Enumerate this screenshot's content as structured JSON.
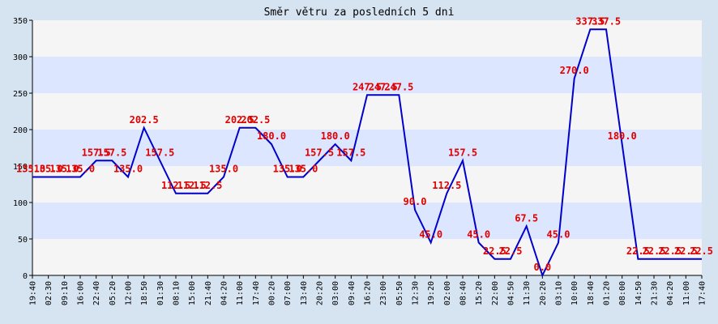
{
  "chart_data": {
    "type": "line",
    "title": "Směr větru za posledních 5 dni",
    "xlabel": "",
    "ylabel": "",
    "ylim": [
      0,
      350
    ],
    "yticks": [
      0,
      50,
      100,
      150,
      200,
      250,
      300,
      350
    ],
    "grid": "horizontal bands",
    "colors": {
      "background": "#d6e4f2",
      "band_light": "#f5f5f5",
      "band_dark": "#dde6ff",
      "line": "#0000cc",
      "labels": "#e00000",
      "axis": "#000000"
    },
    "categories": [
      "19:40",
      "02:30",
      "09:10",
      "16:00",
      "22:40",
      "05:20",
      "12:00",
      "18:50",
      "01:30",
      "08:10",
      "15:00",
      "21:40",
      "04:20",
      "11:00",
      "17:40",
      "00:20",
      "07:00",
      "13:40",
      "20:20",
      "03:00",
      "09:40",
      "16:20",
      "23:00",
      "05:50",
      "12:30",
      "19:20",
      "02:00",
      "08:40",
      "15:20",
      "22:00",
      "04:50",
      "11:30",
      "20:20",
      "03:10",
      "10:00",
      "18:40",
      "01:20",
      "08:00",
      "14:50",
      "21:30",
      "04:20",
      "11:00",
      "17:40"
    ],
    "series": [
      {
        "values": [
          135.0,
          135.0,
          135.0,
          135.0,
          157.5,
          157.5,
          135.0,
          202.5,
          157.5,
          112.5,
          112.5,
          112.5,
          135.0,
          202.5,
          202.5,
          180.0,
          135.0,
          135.0,
          157.5,
          180.0,
          157.5,
          247.5,
          247.5,
          247.5,
          90.0,
          45.0,
          112.5,
          157.5,
          45.0,
          22.5,
          22.5,
          67.5,
          0.0,
          45.0,
          270.0,
          337.5,
          337.5,
          180.0,
          22.5,
          22.5,
          22.5,
          22.5,
          22.5
        ],
        "labels": [
          "135.0",
          "135.0",
          "135.0",
          "135.0",
          "157.5",
          "157.5",
          "135.0",
          "202.5",
          "157.5",
          "112.5",
          "112.5",
          "112.5",
          "135.0",
          "202.5",
          "202.5",
          "180.0",
          "135.0",
          "135.0",
          "157.5",
          "180.0",
          "157.5",
          "247.5",
          "247.5",
          "247.5",
          "90.0",
          "45.0",
          "112.5",
          "157.5",
          "45.0",
          "22.5",
          "22.5",
          "67.5",
          "0.0",
          "45.0",
          "270.0",
          "337.5",
          "337.5",
          "180.0",
          "22.5",
          "22.5",
          "22.5",
          "22.5",
          "22.5"
        ]
      }
    ]
  }
}
